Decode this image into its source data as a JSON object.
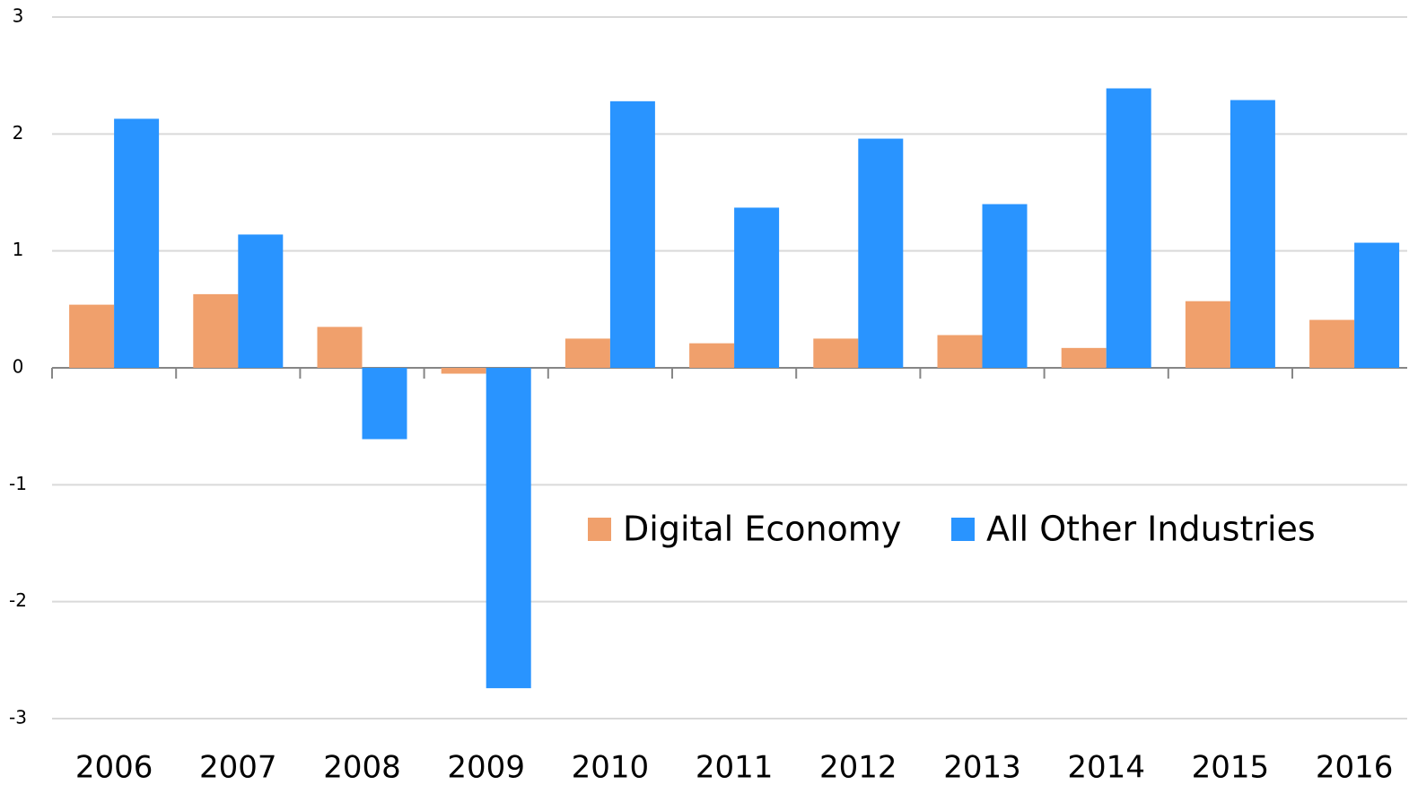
{
  "chart_data": {
    "type": "bar",
    "categories": [
      "2006",
      "2007",
      "2008",
      "2009",
      "2010",
      "2011",
      "2012",
      "2013",
      "2014",
      "2015",
      "2016"
    ],
    "series": [
      {
        "name": "Digital Economy",
        "color": "#f0a06c",
        "values": [
          0.54,
          0.63,
          0.35,
          -0.05,
          0.25,
          0.21,
          0.25,
          0.28,
          0.17,
          0.57,
          0.41
        ]
      },
      {
        "name": "All Other Industries",
        "color": "#2994ff",
        "values": [
          2.13,
          1.14,
          -0.61,
          -2.74,
          2.28,
          1.37,
          1.96,
          1.4,
          2.39,
          2.29,
          1.07
        ]
      }
    ],
    "ylim": [
      -3,
      3
    ],
    "yticks": [
      -3,
      -2,
      -1,
      0,
      1,
      2,
      3
    ],
    "grid": true,
    "legend": "center-right"
  }
}
